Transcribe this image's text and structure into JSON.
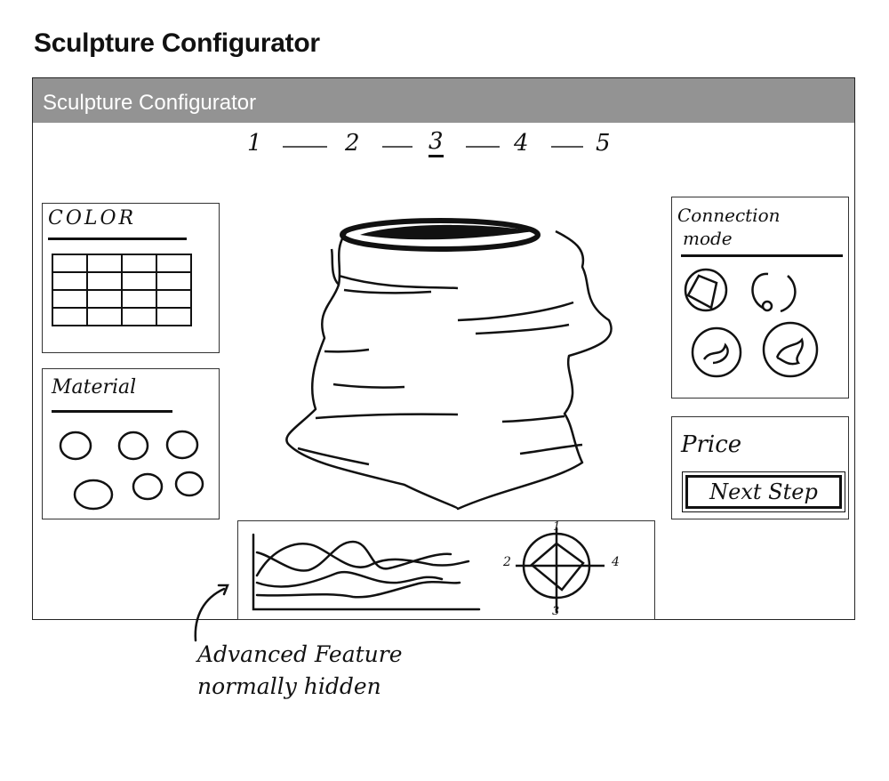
{
  "page": {
    "title": "Sculpture Configurator"
  },
  "window": {
    "title": "Sculpture Configurator",
    "titlebar_color": "#939393"
  },
  "steps": {
    "items": [
      "1",
      "2",
      "3",
      "4",
      "5"
    ],
    "active": "3"
  },
  "color_panel": {
    "title": "COLOR",
    "grid": {
      "rows": 4,
      "cols": 4
    }
  },
  "material_panel": {
    "title": "Material",
    "swatch_count": 6
  },
  "connection_panel": {
    "title_line1": "Connection",
    "title_line2": "mode",
    "icons": [
      "connection-mode-1-icon",
      "connection-mode-2-icon",
      "connection-mode-3-icon",
      "connection-mode-4-icon"
    ]
  },
  "price_panel": {
    "title": "Price",
    "next_button": "Next Step"
  },
  "advanced_panel": {
    "radar_labels": {
      "top": "1",
      "left": "2",
      "right": "4",
      "bottom": "3"
    }
  },
  "annotation": {
    "line1": "Advanced Feature",
    "line2": "normally hidden"
  }
}
